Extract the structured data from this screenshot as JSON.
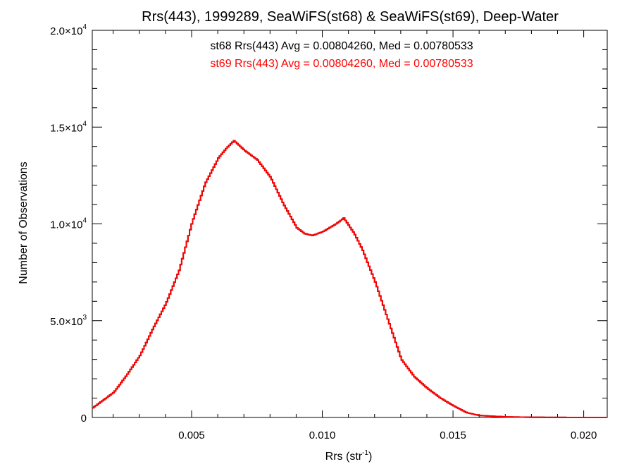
{
  "chart_data": {
    "type": "line",
    "title": "Rrs(443), 1999289, SeaWiFS(st68) & SeaWiFS(st69), Deep-Water",
    "xlabel": {
      "base": "Rrs (str",
      "sup": "-1",
      "tail": ")"
    },
    "ylabel": "Number of Observations",
    "xlim": [
      0.0012,
      0.0209
    ],
    "ylim": [
      0,
      20000
    ],
    "x_ticks": [
      {
        "value": 0.005,
        "label": "0.005"
      },
      {
        "value": 0.01,
        "label": "0.010"
      },
      {
        "value": 0.015,
        "label": "0.015"
      },
      {
        "value": 0.02,
        "label": "0.020"
      }
    ],
    "y_ticks": [
      {
        "value": 0,
        "mant": "0",
        "exp": ""
      },
      {
        "value": 5000,
        "mant": "5.0×10",
        "exp": "3"
      },
      {
        "value": 10000,
        "mant": "1.0×10",
        "exp": "4"
      },
      {
        "value": 15000,
        "mant": "1.5×10",
        "exp": "4"
      },
      {
        "value": 20000,
        "mant": "2.0×10",
        "exp": "4"
      }
    ],
    "annotations": [
      {
        "text": "st68 Rrs(443) Avg = 0.00804260, Med = 0.00780533",
        "color": "#000000"
      },
      {
        "text": "st69 Rrs(443) Avg = 0.00804260, Med = 0.00780533",
        "color": "#ff0000"
      }
    ],
    "series": [
      {
        "name": "st68",
        "color": "#000000",
        "x": [
          0.0012,
          0.002,
          0.0025,
          0.003,
          0.0035,
          0.004,
          0.0045,
          0.005,
          0.0055,
          0.006,
          0.0063,
          0.0066,
          0.007,
          0.0075,
          0.008,
          0.0085,
          0.009,
          0.0093,
          0.0096,
          0.01,
          0.0105,
          0.0108,
          0.0112,
          0.0115,
          0.012,
          0.0125,
          0.013,
          0.0135,
          0.014,
          0.0145,
          0.015,
          0.0155,
          0.016,
          0.017,
          0.018,
          0.019,
          0.02,
          0.0209
        ],
        "y": [
          500,
          1300,
          2200,
          3200,
          4600,
          5900,
          7600,
          10100,
          12100,
          13400,
          13900,
          14300,
          13800,
          13300,
          12400,
          11000,
          9800,
          9500,
          9400,
          9600,
          10000,
          10300,
          9500,
          8700,
          7000,
          5000,
          3000,
          2100,
          1500,
          1000,
          600,
          250,
          100,
          30,
          10,
          3,
          1,
          0
        ]
      },
      {
        "name": "st69",
        "color": "#ff0000",
        "x": [
          0.0012,
          0.002,
          0.0025,
          0.003,
          0.0035,
          0.004,
          0.0045,
          0.005,
          0.0055,
          0.006,
          0.0063,
          0.0066,
          0.007,
          0.0075,
          0.008,
          0.0085,
          0.009,
          0.0093,
          0.0096,
          0.01,
          0.0105,
          0.0108,
          0.0112,
          0.0115,
          0.012,
          0.0125,
          0.013,
          0.0135,
          0.014,
          0.0145,
          0.015,
          0.0155,
          0.016,
          0.017,
          0.018,
          0.019,
          0.02,
          0.0209
        ],
        "y": [
          500,
          1300,
          2200,
          3200,
          4600,
          5900,
          7600,
          10100,
          12100,
          13400,
          13900,
          14300,
          13800,
          13300,
          12400,
          11000,
          9800,
          9500,
          9400,
          9600,
          10000,
          10300,
          9500,
          8700,
          7000,
          5000,
          3000,
          2100,
          1500,
          1000,
          600,
          250,
          100,
          30,
          10,
          3,
          1,
          0
        ]
      }
    ],
    "grid": false,
    "legend": "none"
  }
}
